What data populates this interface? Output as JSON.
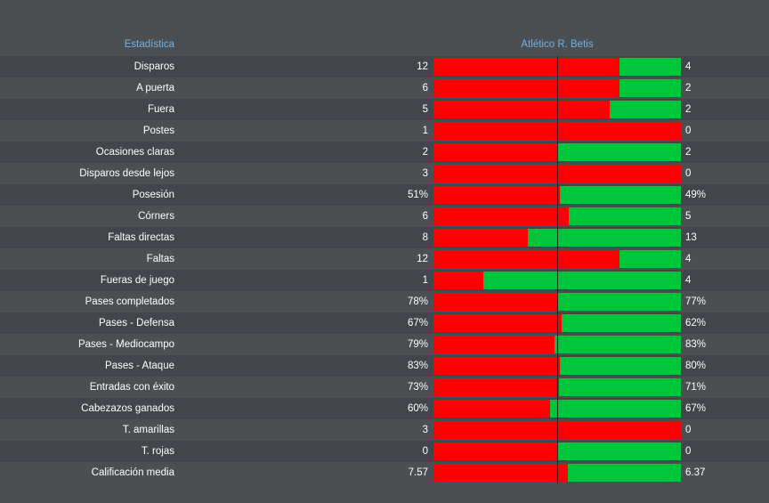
{
  "header": {
    "stat_label": "Estadística",
    "teams_label": "Atlético R. Betis"
  },
  "colors": {
    "home": "#ff0000",
    "away": "#00c43a",
    "background": "#4b4f52",
    "row_alt": "#42464a",
    "header_text": "#6fb3ea"
  },
  "rows": [
    {
      "label": "Disparos",
      "home": "12",
      "away": "4",
      "home_share": 0.75
    },
    {
      "label": "A puerta",
      "home": "6",
      "away": "2",
      "home_share": 0.75
    },
    {
      "label": "Fuera",
      "home": "5",
      "away": "2",
      "home_share": 0.714
    },
    {
      "label": "Postes",
      "home": "1",
      "away": "0",
      "home_share": 1.0
    },
    {
      "label": "Ocasiones claras",
      "home": "2",
      "away": "2",
      "home_share": 0.5
    },
    {
      "label": "Disparos desde lejos",
      "home": "3",
      "away": "0",
      "home_share": 1.0
    },
    {
      "label": "Posesión",
      "home": "51%",
      "away": "49%",
      "home_share": 0.51
    },
    {
      "label": "Córners",
      "home": "6",
      "away": "5",
      "home_share": 0.545
    },
    {
      "label": "Faltas directas",
      "home": "8",
      "away": "13",
      "home_share": 0.381
    },
    {
      "label": "Faltas",
      "home": "12",
      "away": "4",
      "home_share": 0.75
    },
    {
      "label": "Fueras de juego",
      "home": "1",
      "away": "4",
      "home_share": 0.2
    },
    {
      "label": "Pases completados",
      "home": "78%",
      "away": "77%",
      "home_share": 0.503
    },
    {
      "label": "Pases - Defensa",
      "home": "67%",
      "away": "62%",
      "home_share": 0.519
    },
    {
      "label": "Pases - Mediocampo",
      "home": "79%",
      "away": "83%",
      "home_share": 0.488
    },
    {
      "label": "Pases - Ataque",
      "home": "83%",
      "away": "80%",
      "home_share": 0.509
    },
    {
      "label": "Entradas con éxito",
      "home": "73%",
      "away": "71%",
      "home_share": 0.507
    },
    {
      "label": "Cabezazos ganados",
      "home": "60%",
      "away": "67%",
      "home_share": 0.472
    },
    {
      "label": "T. amarillas",
      "home": "3",
      "away": "0",
      "home_share": 1.0
    },
    {
      "label": "T. rojas",
      "home": "0",
      "away": "0",
      "home_share": 0.5
    },
    {
      "label": "Calificación media",
      "home": "7.57",
      "away": "6.37",
      "home_share": 0.543
    }
  ]
}
